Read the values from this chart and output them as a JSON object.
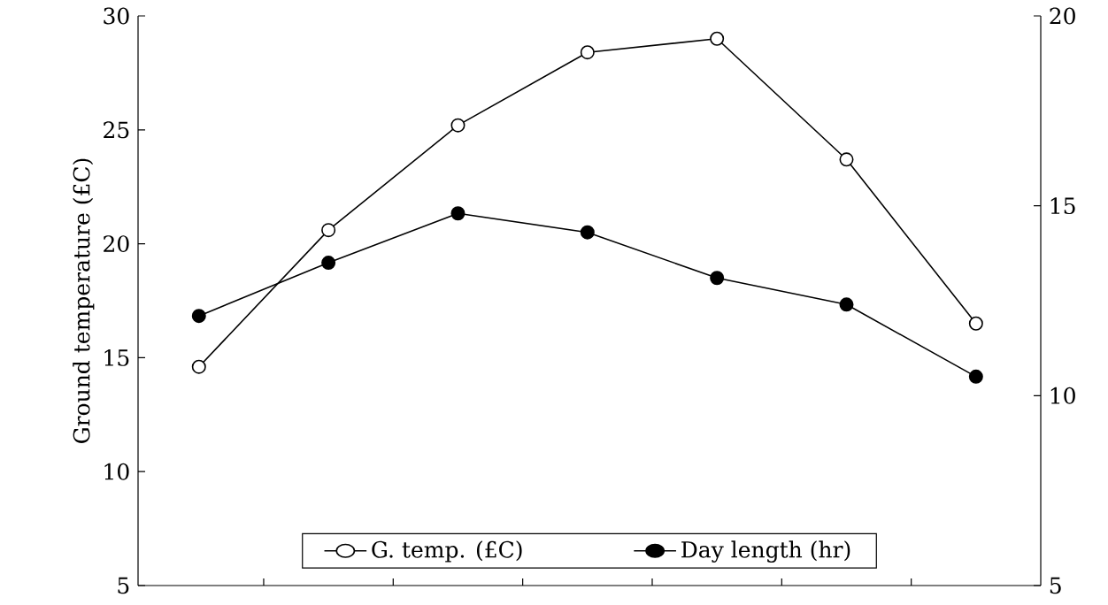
{
  "chart_data": {
    "type": "line",
    "ylabel": "Ground temperature (£C)",
    "categories": [
      null,
      null,
      null,
      null,
      null,
      null,
      null
    ],
    "series": [
      {
        "name": "G. temp. (£C)",
        "color": "#000000",
        "values": [
          14.6,
          20.6,
          25.2,
          28.4,
          29.0,
          23.7,
          16.5
        ]
      },
      {
        "name": "Day length (hr)",
        "color": "#000000",
        "axis": "y2",
        "values": [
          12.1,
          13.5,
          14.8,
          14.3,
          13.1,
          12.4,
          10.5
        ]
      }
    ],
    "ylim": [
      5,
      30
    ],
    "yticks": [
      5,
      10,
      15,
      20,
      25,
      30
    ],
    "y2lim": [
      5,
      20
    ],
    "y2ticks": [
      5,
      10,
      15,
      20
    ],
    "marker": "circle",
    "line_style": "solid",
    "legend": "bottom",
    "grid": false
  }
}
